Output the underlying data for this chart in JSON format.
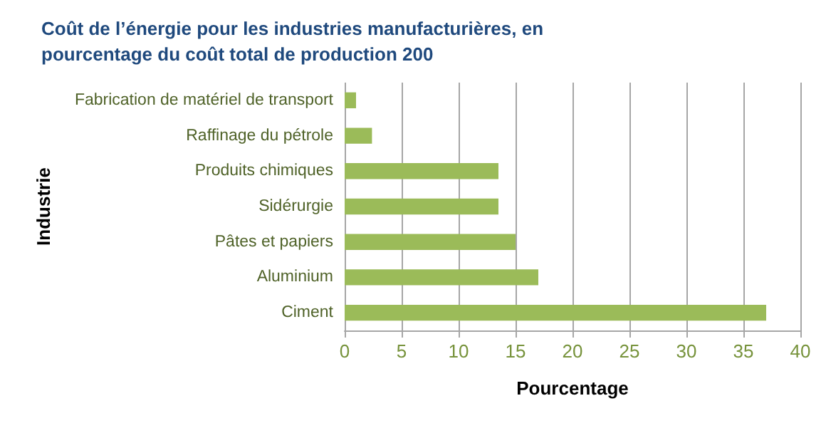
{
  "chart_data": {
    "type": "bar",
    "orientation": "horizontal",
    "title": "Coût de l’énergie pour les industries manufacturières, en pourcentage du coût total de production 200",
    "xlabel": "Pourcentage",
    "ylabel": "Industrie",
    "categories": [
      "Fabrication de matériel de transport",
      "Raffinage du pétrole",
      "Produits chimiques",
      "Sidérurgie",
      "Pâtes et papiers",
      "Aluminium",
      "Ciment"
    ],
    "values": [
      1,
      2.4,
      13.5,
      13.5,
      15,
      17,
      37
    ],
    "color": "#9bbb59",
    "xlim": [
      0,
      40
    ],
    "xticks": [
      0,
      5,
      10,
      15,
      20,
      25,
      30,
      35,
      40
    ],
    "grid": "x"
  }
}
